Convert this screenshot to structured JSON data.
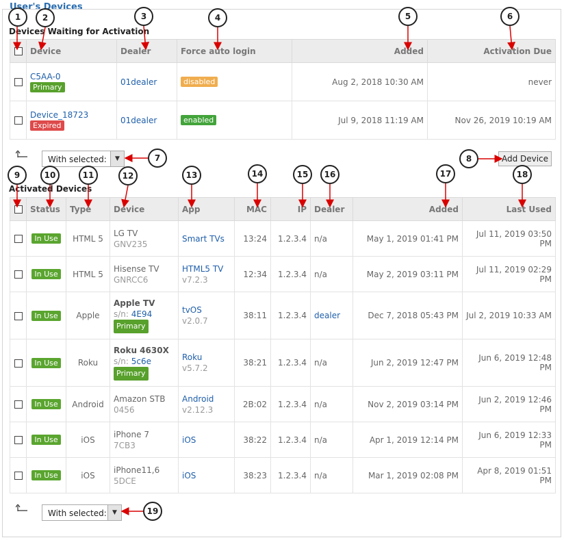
{
  "page_title": "User's Devices",
  "waiting": {
    "title": "Devices Waiting for Activation",
    "headers": {
      "device": "Device",
      "dealer": "Dealer",
      "force_login": "Force auto login",
      "added": "Added",
      "due": "Activation Due"
    },
    "rows": [
      {
        "device": "C5AA-0",
        "badge": "Primary",
        "dealer": "01dealer",
        "force": "disabled",
        "added": "Aug 2, 2018 10:30 AM",
        "due": "never"
      },
      {
        "device": "Device_18723",
        "badge": "Expired",
        "dealer": "01dealer",
        "force": "enabled",
        "added": "Jul 9, 2018 11:19 AM",
        "due": "Nov 26, 2019 10:19 AM"
      }
    ],
    "bulk_select": "With selected:",
    "add_button": "Add Device"
  },
  "activated": {
    "title": "Activated Devices",
    "headers": {
      "status": "Status",
      "type": "Type",
      "device": "Device",
      "app": "App",
      "mac": "MAC",
      "ip": "IP",
      "dealer": "Dealer",
      "added": "Added",
      "last_used": "Last Used"
    },
    "rows": [
      {
        "status": "In Use",
        "type": "HTML 5",
        "device": "LG TV",
        "device_sub": "GNV235",
        "sn_label": "",
        "sn": "",
        "badge": "",
        "app": "Smart TVs",
        "app_ver": "",
        "mac": "13:24",
        "ip": "1.2.3.4",
        "dealer": "n/a",
        "added": "May 1, 2019 01:41 PM",
        "last_used": "Jul 11, 2019 03:50 PM"
      },
      {
        "status": "In Use",
        "type": "HTML 5",
        "device": "Hisense TV",
        "device_sub": "GNRCC6",
        "sn_label": "",
        "sn": "",
        "badge": "",
        "app": "HTML5 TV",
        "app_ver": "v7.2.3",
        "mac": "12:34",
        "ip": "1.2.3.4",
        "dealer": "n/a",
        "added": "May 2, 2019 03:11 PM",
        "last_used": "Jul 11, 2019 02:29 PM"
      },
      {
        "status": "In Use",
        "type": "Apple",
        "device": "Apple TV",
        "device_sub": "",
        "sn_label": "s/n:",
        "sn": "4E94",
        "badge": "Primary",
        "app": "tvOS",
        "app_ver": "v2.0.7",
        "mac": "38:11",
        "ip": "1.2.3.4",
        "dealer": "dealer",
        "added": "Dec 7, 2018 05:43 PM",
        "last_used": "Jul 2, 2019 10:33 AM"
      },
      {
        "status": "In Use",
        "type": "Roku",
        "device": "Roku 4630X",
        "device_sub": "",
        "sn_label": "s/n:",
        "sn": "5c6e",
        "badge": "Primary",
        "app": "Roku",
        "app_ver": "v5.7.2",
        "mac": "38:21",
        "ip": "1.2.3.4",
        "dealer": "n/a",
        "added": "Jun 2, 2019 12:47 PM",
        "last_used": "Jun 6, 2019 12:48 PM"
      },
      {
        "status": "In Use",
        "type": "Android",
        "device": "Amazon STB",
        "device_sub": "0456",
        "sn_label": "",
        "sn": "",
        "badge": "",
        "app": "Android",
        "app_ver": "v2.12.3",
        "mac": "2B:02",
        "ip": "1.2.3.4",
        "dealer": "n/a",
        "added": "Nov 2, 2019 03:14 PM",
        "last_used": "Jun 2, 2019 12:46 PM"
      },
      {
        "status": "In Use",
        "type": "iOS",
        "device": "iPhone 7",
        "device_sub": "7CB3",
        "sn_label": "",
        "sn": "",
        "badge": "",
        "app": "iOS",
        "app_ver": "",
        "mac": "38:22",
        "ip": "1.2.3.4",
        "dealer": "n/a",
        "added": "Apr 1, 2019 12:14 PM",
        "last_used": "Jun 6, 2019 12:33 PM"
      },
      {
        "status": "In Use",
        "type": "iOS",
        "device": "iPhone11,6",
        "device_sub": "5DCE",
        "sn_label": "",
        "sn": "",
        "badge": "",
        "app": "iOS",
        "app_ver": "",
        "mac": "38:23",
        "ip": "1.2.3.4",
        "dealer": "n/a",
        "added": "Mar 1, 2019 02:08 PM",
        "last_used": "Apr 8, 2019 01:51 PM"
      }
    ],
    "bulk_select": "With selected:"
  },
  "callouts": [
    "1",
    "2",
    "3",
    "4",
    "5",
    "6",
    "7",
    "8",
    "9",
    "10",
    "11",
    "12",
    "13",
    "14",
    "15",
    "16",
    "17",
    "18",
    "19"
  ],
  "colors": {
    "link": "#1f5faa",
    "annotation_arrow": "#d90000",
    "badge_green": "#58a12c",
    "badge_red": "#de4a4a",
    "badge_orange": "#f0ad4e"
  }
}
